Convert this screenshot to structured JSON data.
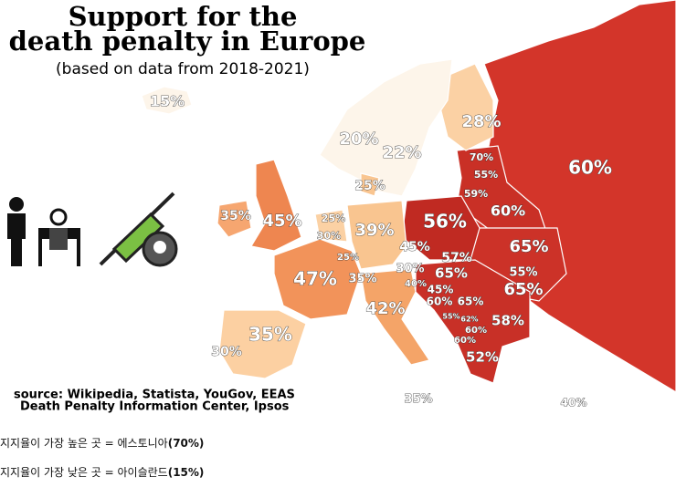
{
  "title": [
    "Support for the",
    "death penalty in Europe"
  ],
  "subtitle": "(based on data from 2018-2021)",
  "source": [
    "source: Wikipedia, Statista, YouGov, EEAS",
    "Death Penalty Information Center, Ipsos"
  ],
  "map_labels": [
    "15%",
    "20%",
    "22%",
    "28%",
    "70%",
    "55%",
    "60%",
    "25%",
    "59%",
    "35%",
    "45%",
    "25%",
    "56%",
    "60%",
    "30%",
    "39%",
    "45%",
    "65%",
    "25%",
    "57%",
    "55%",
    "30%",
    "47%",
    "35%",
    "40%",
    "65%",
    "45%",
    "65%",
    "60%",
    "65%",
    "42%",
    "55%",
    "62%",
    "58%",
    "60%",
    "60%",
    "35%",
    "30%",
    "52%",
    "35%",
    "40%"
  ],
  "notes": [
    {
      "text": "지지율이 가장 높은 곳 = 에스토니아",
      "value": "(70%)"
    },
    {
      "text": "지지율이 가장 낮은 곳 = 아이슬란드",
      "value": "(15%)"
    }
  ]
}
